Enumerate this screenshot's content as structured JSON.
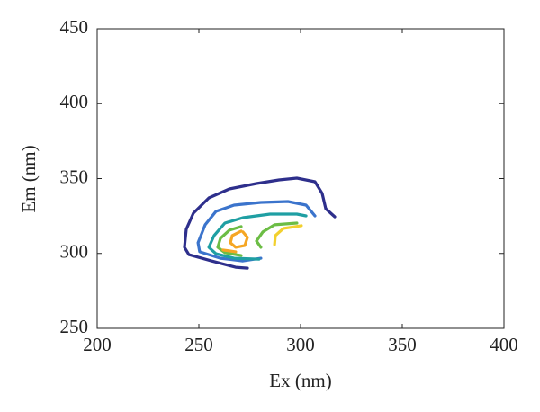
{
  "chart_data": {
    "type": "contour",
    "xlabel": "Ex (nm)",
    "ylabel": "Em (nm)",
    "xlim": [
      200,
      400
    ],
    "xticks": [
      200,
      250,
      300,
      350,
      400
    ],
    "ylim": [
      250,
      450
    ],
    "yticks": [
      250,
      300,
      350,
      400,
      450
    ],
    "series": [
      {
        "color": "#2e2f8c",
        "x": [
          316.8,
          312.4,
          310.6,
          307.1,
          298.2,
          289.4,
          278.3,
          265.0,
          254.9,
          247.3,
          243.8,
          242.9,
          245.1,
          256.2,
          268.1,
          273.9
        ],
        "y": [
          324.5,
          329.9,
          340.1,
          347.9,
          350.3,
          349.1,
          346.7,
          343.1,
          337.1,
          326.9,
          316.1,
          304.1,
          299.2,
          295.0,
          290.8,
          290.2
        ]
      },
      {
        "color": "#3b74cc",
        "x": [
          307.1,
          302.7,
          293.8,
          280.5,
          267.3,
          258.4,
          253.1,
          249.6,
          250.4,
          260.6,
          271.7,
          280.5
        ],
        "y": [
          325.1,
          332.3,
          334.7,
          334.1,
          332.3,
          328.1,
          319.1,
          307.1,
          301.1,
          296.8,
          295.0,
          296.8
        ]
      },
      {
        "color": "#1f9fa3",
        "x": [
          302.7,
          298.2,
          285.0,
          271.7,
          262.8,
          257.5,
          254.9,
          258.4,
          267.3,
          279.6
        ],
        "y": [
          325.1,
          326.3,
          326.3,
          323.9,
          320.3,
          311.9,
          304.1,
          299.8,
          296.8,
          296.2
        ]
      },
      {
        "color": "#6cbd45",
        "x": [
          298.2,
          287.2,
          281.4,
          278.3,
          280.5,
          null,
          270.8,
          265.0,
          260.6,
          259.3,
          262.8,
          270.8
        ],
        "y": [
          320.3,
          319.1,
          314.3,
          308.3,
          304.1,
          null,
          317.9,
          315.5,
          310.1,
          304.1,
          300.5,
          298.6
        ]
      },
      {
        "color": "#f2d02e",
        "x": [
          300.4,
          291.6,
          287.6,
          287.2
        ],
        "y": [
          318.5,
          316.7,
          311.9,
          305.9
        ]
      },
      {
        "color": "#f5a623",
        "x": [
          270.8,
          266.4,
          265.5,
          268.1,
          272.6,
          273.9,
          271.7,
          null,
          261.9,
          268.1
        ],
        "y": [
          314.9,
          311.9,
          307.1,
          304.1,
          305.3,
          310.7,
          314.3,
          null,
          302.3,
          301.1
        ]
      }
    ]
  }
}
